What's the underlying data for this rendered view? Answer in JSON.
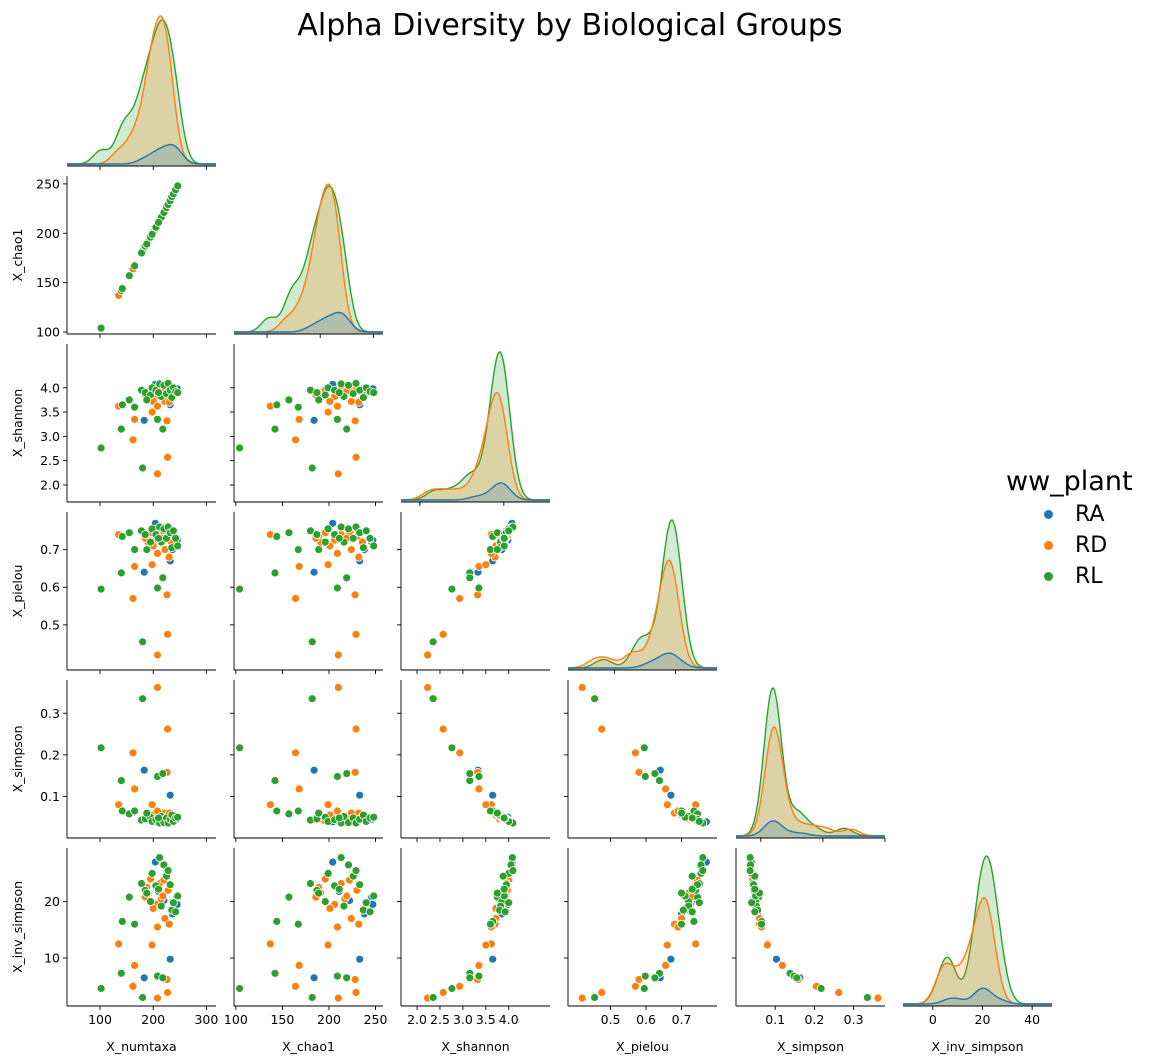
{
  "figure": {
    "title": "Alpha Diversity by Biological Groups"
  },
  "legend": {
    "title": "ww_plant",
    "items": [
      {
        "label": "RA",
        "color": "#1f77b4"
      },
      {
        "label": "RD",
        "color": "#ff7f0e"
      },
      {
        "label": "RL",
        "color": "#2ca02c"
      }
    ]
  },
  "chart_data": {
    "type": "scatter",
    "subtype": "pairplot-corner",
    "diag_kind": "kde",
    "hue": "ww_plant",
    "variables": [
      "X_numtaxa",
      "X_chao1",
      "X_shannon",
      "X_pielou",
      "X_simpson",
      "X_inv_simpson"
    ],
    "axes": {
      "X_numtaxa": {
        "range": [
          38,
          318
        ],
        "ticks": [
          100,
          200,
          300
        ]
      },
      "X_chao1": {
        "range": [
          98,
          258
        ],
        "ticks": [
          100,
          150,
          200,
          250
        ]
      },
      "X_shannon": {
        "range": [
          1.65,
          4.9
        ],
        "ticks": [
          2.0,
          2.5,
          3.0,
          3.5,
          4.0
        ]
      },
      "X_pielou": {
        "range": [
          0.38,
          0.8
        ],
        "ticks": [
          0.5,
          0.6,
          0.7
        ]
      },
      "X_simpson": {
        "range": [
          0.0,
          0.38
        ],
        "ticks": [
          0.1,
          0.2,
          0.3
        ]
      },
      "X_inv_simpson": {
        "range": [
          1.5,
          29.5
        ],
        "ticks": [
          10,
          20
        ]
      }
    },
    "diag_axes": {
      "X_numtaxa": {
        "range": [
          38,
          318
        ],
        "ticks": [
          100,
          200,
          300
        ]
      },
      "X_chao1": {
        "range": [
          38,
          318
        ],
        "ticks": [
          100,
          200,
          300
        ]
      },
      "X_shannon": {
        "range": [
          1.55,
          5.1
        ],
        "ticks": [
          2,
          4
        ]
      },
      "X_pielou": {
        "range": [
          0.31,
          0.92
        ],
        "ticks": [
          0.5,
          0.75
        ]
      },
      "X_simpson": {
        "range": [
          -0.1,
          0.5
        ],
        "ticks": [
          0.0,
          0.25,
          0.5
        ]
      },
      "X_inv_simpson": {
        "range": [
          -12,
          48
        ],
        "ticks": [
          0,
          20,
          40
        ]
      }
    },
    "groups": [
      {
        "name": "RA",
        "color": "#1f77b4",
        "points": [
          {
            "X_numtaxa": 204,
            "X_chao1": 204,
            "X_shannon": 4.07,
            "X_pielou": 0.77,
            "X_simpson": 0.039,
            "X_inv_simpson": 27.0
          },
          {
            "X_numtaxa": 244,
            "X_chao1": 246,
            "X_shannon": 3.94,
            "X_pielou": 0.72,
            "X_simpson": 0.045,
            "X_inv_simpson": 20.8
          },
          {
            "X_numtaxa": 232,
            "X_chao1": 233,
            "X_shannon": 3.65,
            "X_pielou": 0.67,
            "X_simpson": 0.103,
            "X_inv_simpson": 9.8
          },
          {
            "X_numtaxa": 183,
            "X_chao1": 184,
            "X_shannon": 3.33,
            "X_pielou": 0.64,
            "X_simpson": 0.163,
            "X_inv_simpson": 6.5
          },
          {
            "X_numtaxa": 220,
            "X_chao1": 222,
            "X_shannon": 3.92,
            "X_pielou": 0.73,
            "X_simpson": 0.048,
            "X_inv_simpson": 20.2
          },
          {
            "X_numtaxa": 245,
            "X_chao1": 247,
            "X_shannon": 3.98,
            "X_pielou": 0.725,
            "X_simpson": 0.05,
            "X_inv_simpson": 19.5
          },
          {
            "X_numtaxa": 236,
            "X_chao1": 238,
            "X_shannon": 3.85,
            "X_pielou": 0.7,
            "X_simpson": 0.055,
            "X_inv_simpson": 17.8
          },
          {
            "X_numtaxa": 210,
            "X_chao1": 211,
            "X_shannon": 3.95,
            "X_pielou": 0.74,
            "X_simpson": 0.046,
            "X_inv_simpson": 21.8
          }
        ]
      },
      {
        "name": "RD",
        "color": "#ff7f0e",
        "points": [
          {
            "X_numtaxa": 135,
            "X_chao1": 137,
            "X_shannon": 3.62,
            "X_pielou": 0.74,
            "X_simpson": 0.08,
            "X_inv_simpson": 12.5
          },
          {
            "X_numtaxa": 165,
            "X_chao1": 168,
            "X_shannon": 3.35,
            "X_pielou": 0.655,
            "X_simpson": 0.118,
            "X_inv_simpson": 8.7
          },
          {
            "X_numtaxa": 162,
            "X_chao1": 164,
            "X_shannon": 2.93,
            "X_pielou": 0.57,
            "X_simpson": 0.205,
            "X_inv_simpson": 5.0
          },
          {
            "X_numtaxa": 208,
            "X_chao1": 210,
            "X_shannon": 2.23,
            "X_pielou": 0.42,
            "X_simpson": 0.362,
            "X_inv_simpson": 2.9
          },
          {
            "X_numtaxa": 227,
            "X_chao1": 229,
            "X_shannon": 2.57,
            "X_pielou": 0.475,
            "X_simpson": 0.262,
            "X_inv_simpson": 3.9
          },
          {
            "X_numtaxa": 226,
            "X_chao1": 228,
            "X_shannon": 3.32,
            "X_pielou": 0.58,
            "X_simpson": 0.158,
            "X_inv_simpson": 6.2
          },
          {
            "X_numtaxa": 198,
            "X_chao1": 199,
            "X_shannon": 3.5,
            "X_pielou": 0.66,
            "X_simpson": 0.08,
            "X_inv_simpson": 12.3
          },
          {
            "X_numtaxa": 188,
            "X_chao1": 189,
            "X_shannon": 3.9,
            "X_pielou": 0.735,
            "X_simpson": 0.045,
            "X_inv_simpson": 22.5
          },
          {
            "X_numtaxa": 190,
            "X_chao1": 191,
            "X_shannon": 3.8,
            "X_pielou": 0.72,
            "X_simpson": 0.046,
            "X_inv_simpson": 21.5
          },
          {
            "X_numtaxa": 195,
            "X_chao1": 196,
            "X_shannon": 3.95,
            "X_pielou": 0.745,
            "X_simpson": 0.041,
            "X_inv_simpson": 24.0
          },
          {
            "X_numtaxa": 205,
            "X_chao1": 206,
            "X_shannon": 3.82,
            "X_pielou": 0.725,
            "X_simpson": 0.052,
            "X_inv_simpson": 19.5
          },
          {
            "X_numtaxa": 212,
            "X_chao1": 213,
            "X_shannon": 3.97,
            "X_pielou": 0.74,
            "X_simpson": 0.043,
            "X_inv_simpson": 23.2
          },
          {
            "X_numtaxa": 215,
            "X_chao1": 217,
            "X_shannon": 3.9,
            "X_pielou": 0.72,
            "X_simpson": 0.05,
            "X_inv_simpson": 20.5
          },
          {
            "X_numtaxa": 220,
            "X_chao1": 222,
            "X_shannon": 4.0,
            "X_pielou": 0.745,
            "X_simpson": 0.042,
            "X_inv_simpson": 23.8
          },
          {
            "X_numtaxa": 222,
            "X_chao1": 224,
            "X_shannon": 3.72,
            "X_pielou": 0.7,
            "X_simpson": 0.06,
            "X_inv_simpson": 17.0
          },
          {
            "X_numtaxa": 228,
            "X_chao1": 230,
            "X_shannon": 3.97,
            "X_pielou": 0.735,
            "X_simpson": 0.044,
            "X_inv_simpson": 22.0
          },
          {
            "X_numtaxa": 230,
            "X_chao1": 232,
            "X_shannon": 3.7,
            "X_pielou": 0.68,
            "X_simpson": 0.06,
            "X_inv_simpson": 16.0
          },
          {
            "X_numtaxa": 234,
            "X_chao1": 236,
            "X_shannon": 3.88,
            "X_pielou": 0.72,
            "X_simpson": 0.052,
            "X_inv_simpson": 18.5
          },
          {
            "X_numtaxa": 200,
            "X_chao1": 201,
            "X_shannon": 3.72,
            "X_pielou": 0.71,
            "X_simpson": 0.055,
            "X_inv_simpson": 18.8
          },
          {
            "X_numtaxa": 218,
            "X_chao1": 219,
            "X_shannon": 3.93,
            "X_pielou": 0.73,
            "X_simpson": 0.047,
            "X_inv_simpson": 21.0
          },
          {
            "X_numtaxa": 185,
            "X_chao1": 186,
            "X_shannon": 3.85,
            "X_pielou": 0.73,
            "X_simpson": 0.048,
            "X_inv_simpson": 20.8
          },
          {
            "X_numtaxa": 208,
            "X_chao1": 209,
            "X_shannon": 3.62,
            "X_pielou": 0.69,
            "X_simpson": 0.065,
            "X_inv_simpson": 15.5
          }
        ]
      },
      {
        "name": "RL",
        "color": "#2ca02c",
        "points": [
          {
            "X_numtaxa": 102,
            "X_chao1": 104,
            "X_shannon": 2.76,
            "X_pielou": 0.595,
            "X_simpson": 0.217,
            "X_inv_simpson": 4.6
          },
          {
            "X_numtaxa": 140,
            "X_chao1": 142,
            "X_shannon": 3.15,
            "X_pielou": 0.638,
            "X_simpson": 0.138,
            "X_inv_simpson": 7.3
          },
          {
            "X_numtaxa": 180,
            "X_chao1": 182,
            "X_shannon": 2.35,
            "X_pielou": 0.455,
            "X_simpson": 0.335,
            "X_inv_simpson": 3.0
          },
          {
            "X_numtaxa": 208,
            "X_chao1": 209,
            "X_shannon": 3.35,
            "X_pielou": 0.598,
            "X_simpson": 0.148,
            "X_inv_simpson": 6.8
          },
          {
            "X_numtaxa": 218,
            "X_chao1": 219,
            "X_shannon": 3.15,
            "X_pielou": 0.625,
            "X_simpson": 0.155,
            "X_inv_simpson": 6.5
          },
          {
            "X_numtaxa": 142,
            "X_chao1": 144,
            "X_shannon": 3.65,
            "X_pielou": 0.735,
            "X_simpson": 0.065,
            "X_inv_simpson": 16.5
          },
          {
            "X_numtaxa": 155,
            "X_chao1": 157,
            "X_shannon": 3.75,
            "X_pielou": 0.745,
            "X_simpson": 0.058,
            "X_inv_simpson": 20.8
          },
          {
            "X_numtaxa": 165,
            "X_chao1": 167,
            "X_shannon": 3.6,
            "X_pielou": 0.7,
            "X_simpson": 0.065,
            "X_inv_simpson": 16.0
          },
          {
            "X_numtaxa": 178,
            "X_chao1": 180,
            "X_shannon": 3.95,
            "X_pielou": 0.75,
            "X_simpson": 0.043,
            "X_inv_simpson": 23.2
          },
          {
            "X_numtaxa": 185,
            "X_chao1": 187,
            "X_shannon": 3.9,
            "X_pielou": 0.74,
            "X_simpson": 0.046,
            "X_inv_simpson": 22.0
          },
          {
            "X_numtaxa": 195,
            "X_chao1": 196,
            "X_shannon": 3.85,
            "X_pielou": 0.72,
            "X_simpson": 0.05,
            "X_inv_simpson": 20.0
          },
          {
            "X_numtaxa": 198,
            "X_chao1": 199,
            "X_shannon": 4.0,
            "X_pielou": 0.755,
            "X_simpson": 0.04,
            "X_inv_simpson": 25.0
          },
          {
            "X_numtaxa": 205,
            "X_chao1": 206,
            "X_shannon": 3.95,
            "X_pielou": 0.74,
            "X_simpson": 0.044,
            "X_inv_simpson": 22.8
          },
          {
            "X_numtaxa": 212,
            "X_chao1": 213,
            "X_shannon": 4.08,
            "X_pielou": 0.76,
            "X_simpson": 0.036,
            "X_inv_simpson": 27.8
          },
          {
            "X_numtaxa": 215,
            "X_chao1": 216,
            "X_shannon": 3.82,
            "X_pielou": 0.72,
            "X_simpson": 0.052,
            "X_inv_simpson": 19.2
          },
          {
            "X_numtaxa": 220,
            "X_chao1": 221,
            "X_shannon": 4.05,
            "X_pielou": 0.755,
            "X_simpson": 0.037,
            "X_inv_simpson": 26.5
          },
          {
            "X_numtaxa": 225,
            "X_chao1": 226,
            "X_shannon": 3.88,
            "X_pielou": 0.73,
            "X_simpson": 0.048,
            "X_inv_simpson": 24.5
          },
          {
            "X_numtaxa": 228,
            "X_chao1": 229,
            "X_shannon": 4.09,
            "X_pielou": 0.76,
            "X_simpson": 0.036,
            "X_inv_simpson": 25.5
          },
          {
            "X_numtaxa": 232,
            "X_chao1": 233,
            "X_shannon": 3.95,
            "X_pielou": 0.745,
            "X_simpson": 0.045,
            "X_inv_simpson": 23.0
          },
          {
            "X_numtaxa": 235,
            "X_chao1": 237,
            "X_shannon": 3.8,
            "X_pielou": 0.705,
            "X_simpson": 0.055,
            "X_inv_simpson": 18.5
          },
          {
            "X_numtaxa": 238,
            "X_chao1": 240,
            "X_shannon": 4.0,
            "X_pielou": 0.75,
            "X_simpson": 0.04,
            "X_inv_simpson": 19.8
          },
          {
            "X_numtaxa": 242,
            "X_chao1": 244,
            "X_shannon": 3.92,
            "X_pielou": 0.73,
            "X_simpson": 0.048,
            "X_inv_simpson": 18.2
          },
          {
            "X_numtaxa": 246,
            "X_chao1": 248,
            "X_shannon": 3.9,
            "X_pielou": 0.71,
            "X_simpson": 0.05,
            "X_inv_simpson": 21.0
          },
          {
            "X_numtaxa": 188,
            "X_chao1": 189,
            "X_shannon": 3.75,
            "X_pielou": 0.7,
            "X_simpson": 0.06,
            "X_inv_simpson": 21.5
          },
          {
            "X_numtaxa": 210,
            "X_chao1": 211,
            "X_shannon": 3.9,
            "X_pielou": 0.73,
            "X_simpson": 0.048,
            "X_inv_simpson": 22.2
          }
        ]
      }
    ]
  }
}
